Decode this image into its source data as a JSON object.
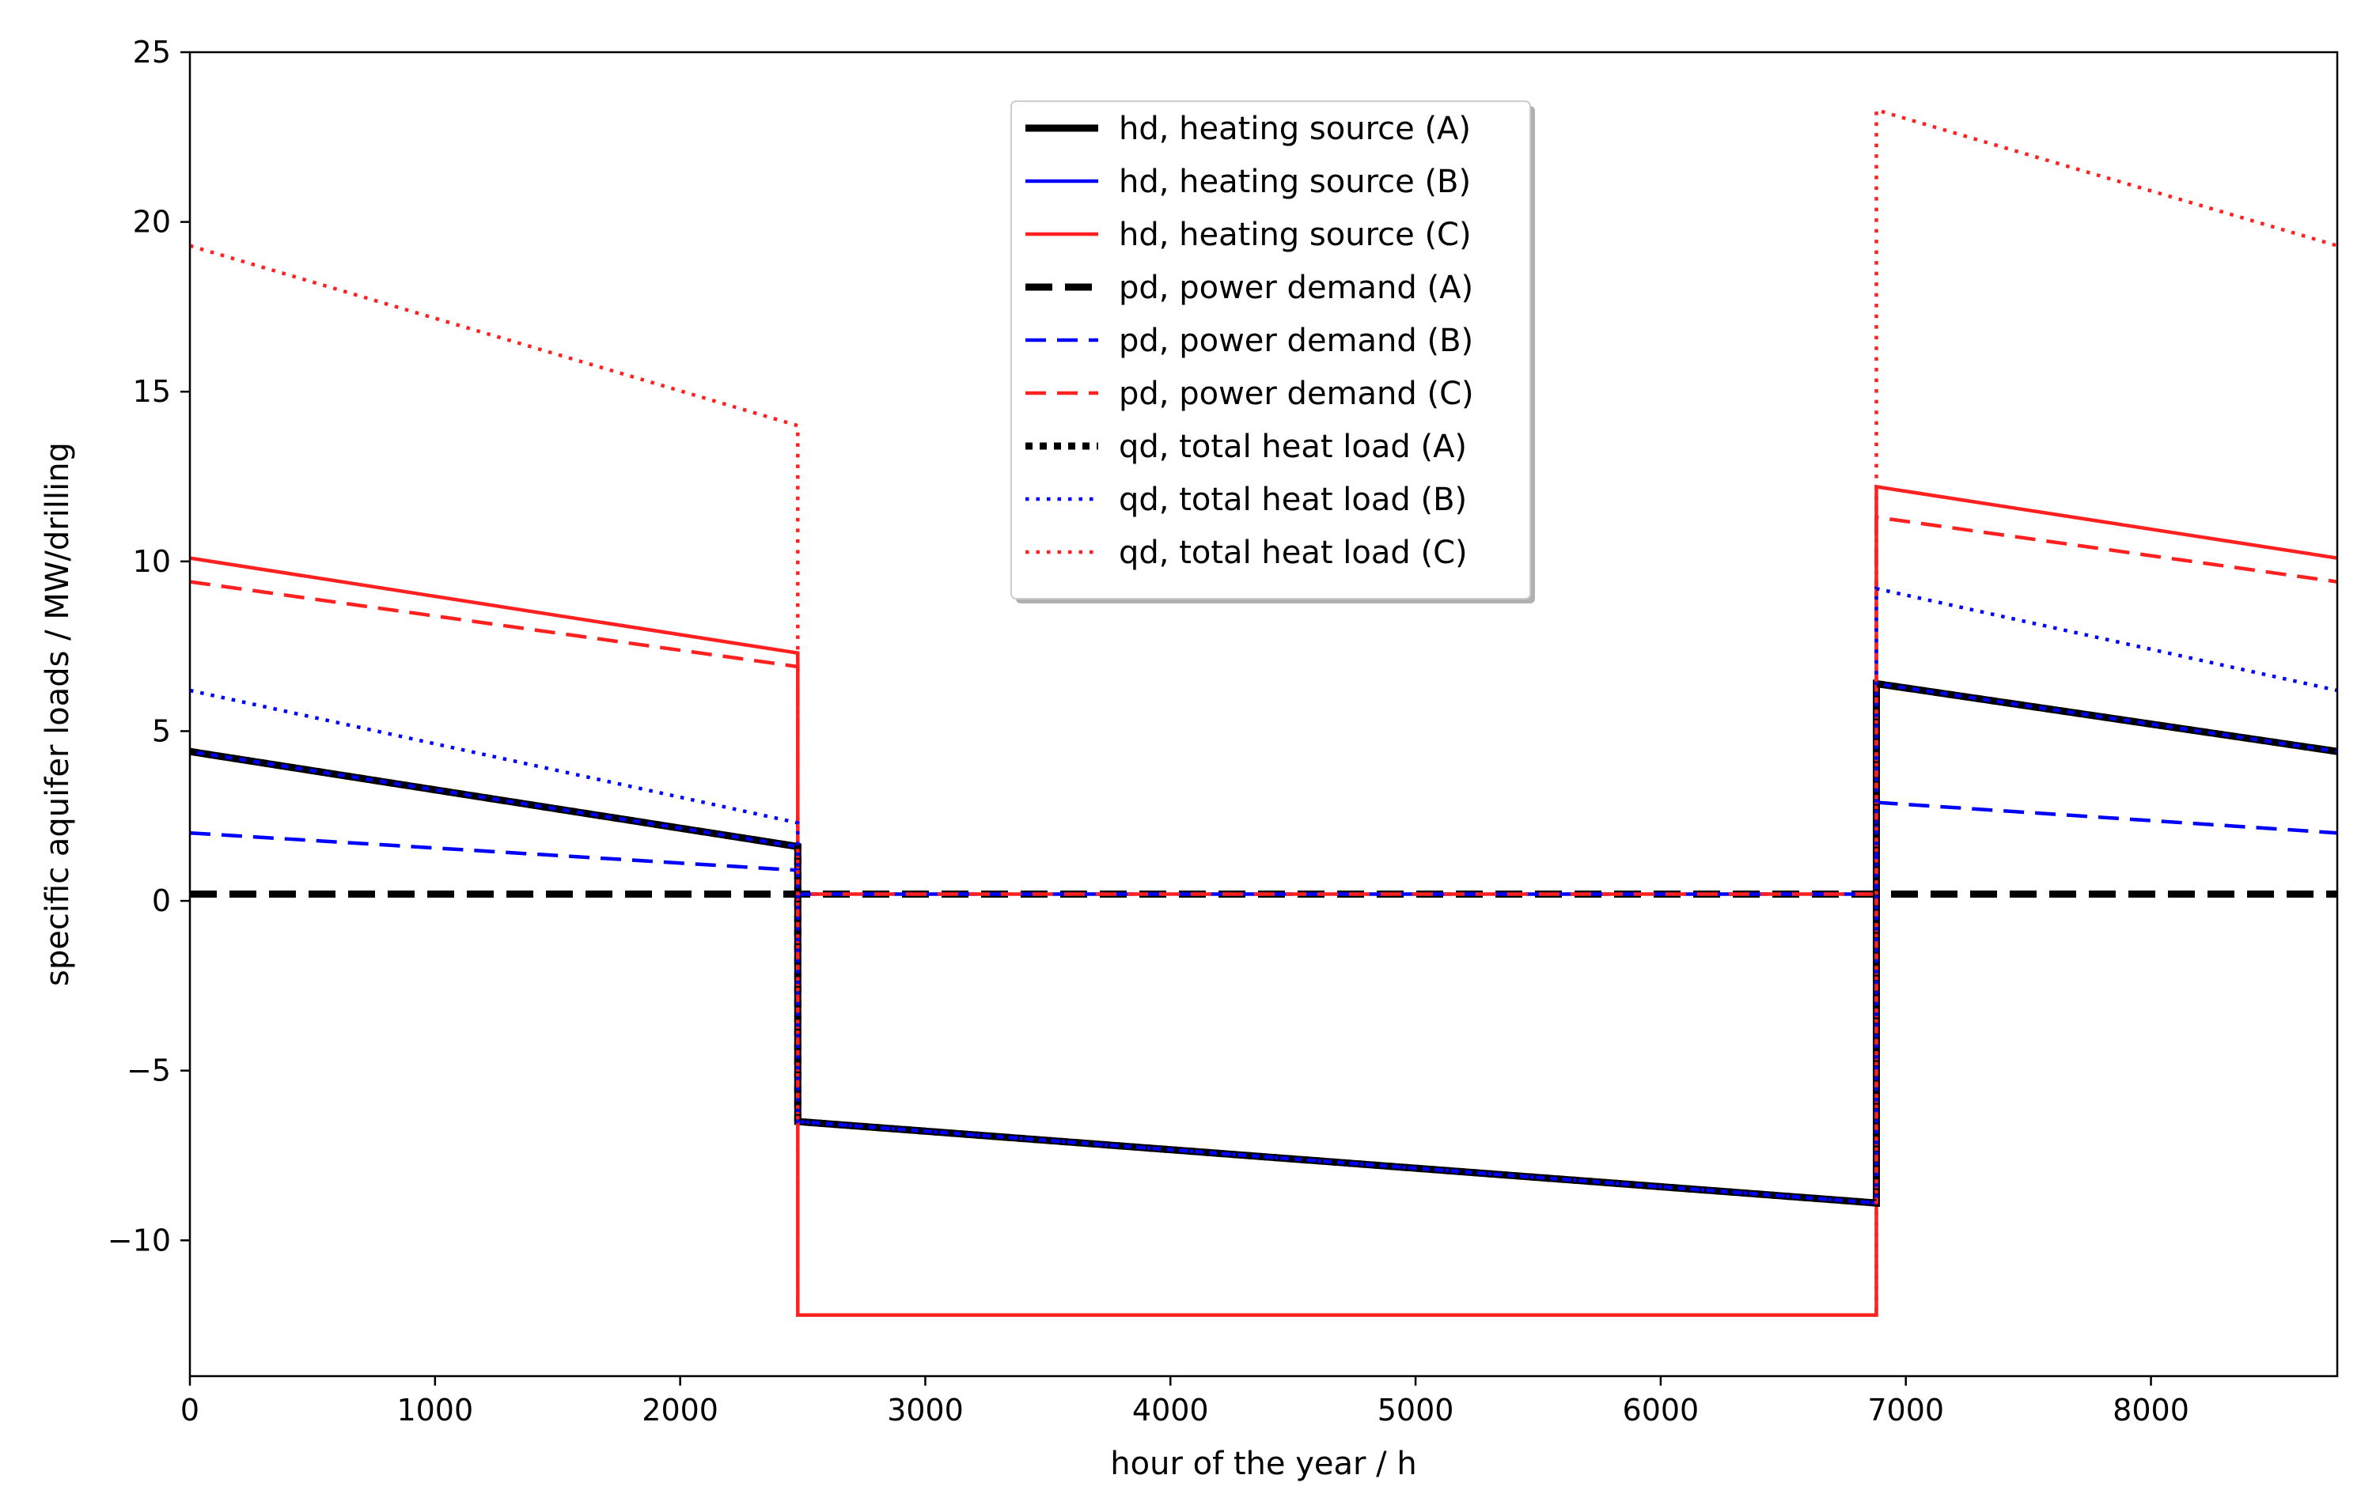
{
  "chart_data": {
    "type": "line",
    "title": "",
    "xlabel": "hour of the year / h",
    "ylabel": "specific aquifer loads / MW/drilling",
    "xlim": [
      0,
      8760
    ],
    "ylim": [
      -14,
      25
    ],
    "xticks": [
      0,
      1000,
      2000,
      3000,
      4000,
      5000,
      6000,
      7000,
      8000
    ],
    "yticks": [
      -10,
      -5,
      0,
      5,
      10,
      15,
      20,
      25
    ],
    "grid": false,
    "legend_position": "upper center",
    "series": [
      {
        "name": "hd, heating source (A)",
        "color": "#000000",
        "style": "solid",
        "width": "thick",
        "x": [
          0,
          2480,
          2480,
          6880,
          6880,
          8760
        ],
        "y": [
          4.4,
          1.6,
          -6.5,
          -8.9,
          6.4,
          4.4
        ]
      },
      {
        "name": "hd, heating source (B)",
        "color": "#0000ff",
        "style": "solid",
        "width": "medium",
        "x": [
          0,
          2480,
          2480,
          6880,
          6880,
          8760
        ],
        "y": [
          4.4,
          1.6,
          -6.5,
          -8.9,
          6.4,
          4.4
        ]
      },
      {
        "name": "hd, heating source (C)",
        "color": "#ff2020",
        "style": "solid",
        "width": "medium",
        "x": [
          0,
          2480,
          2480,
          6880,
          6880,
          8760
        ],
        "y": [
          10.1,
          7.3,
          -12.2,
          -12.2,
          12.2,
          10.1
        ]
      },
      {
        "name": "pd, power demand (A)",
        "color": "#000000",
        "style": "dashed",
        "width": "thick",
        "x": [
          0,
          8760
        ],
        "y": [
          0.2,
          0.2
        ]
      },
      {
        "name": "pd, power demand (B)",
        "color": "#0000ff",
        "style": "dashed",
        "width": "medium",
        "x": [
          0,
          2480,
          2480,
          6880,
          6880,
          8760
        ],
        "y": [
          2.0,
          0.9,
          0.2,
          0.2,
          2.9,
          2.0
        ]
      },
      {
        "name": "pd, power demand (C)",
        "color": "#ff2020",
        "style": "dashed",
        "width": "medium",
        "x": [
          0,
          2480,
          2480,
          6880,
          6880,
          8760
        ],
        "y": [
          9.4,
          6.9,
          0.2,
          0.2,
          11.3,
          9.4
        ]
      },
      {
        "name": "qd, total heat load (A)",
        "color": "#000000",
        "style": "dotted",
        "width": "thick",
        "x": [
          0,
          2480,
          2480,
          6880,
          6880,
          8760
        ],
        "y": [
          4.4,
          1.6,
          -6.5,
          -8.9,
          6.4,
          4.4
        ]
      },
      {
        "name": "qd, total heat load (B)",
        "color": "#0000ff",
        "style": "dotted",
        "width": "medium",
        "x": [
          0,
          2480,
          2480,
          6880,
          6880,
          8760
        ],
        "y": [
          6.2,
          2.3,
          -6.5,
          -8.9,
          9.2,
          6.2
        ]
      },
      {
        "name": "qd, total heat load (C)",
        "color": "#ff2020",
        "style": "dotted",
        "width": "medium",
        "x": [
          0,
          2480,
          2480,
          6880,
          6880,
          8760
        ],
        "y": [
          19.3,
          14.0,
          -12.2,
          -12.2,
          23.3,
          19.3
        ]
      }
    ]
  }
}
